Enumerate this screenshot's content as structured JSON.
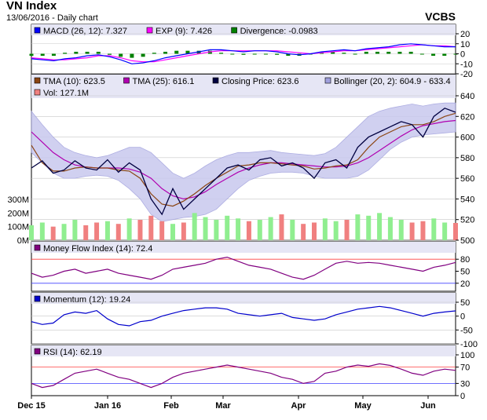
{
  "header": {
    "title": "VN Index",
    "subtitle": "13/06/2016 - Daily chart",
    "source": "VCBS"
  },
  "colors": {
    "panel_bg": "#ffffff",
    "legend_bg": "#e6e6f5",
    "price_bg": "#e8e8f5",
    "macd": "#0000ff",
    "exp": "#ff00ff",
    "divergence": "#008000",
    "tma10": "#8b4513",
    "tma25": "#b000b0",
    "closing": "#000040",
    "bollinger_fill": "#c8c8ee",
    "bollinger_line": "#a0a0dd",
    "vol_up": "#90ee90",
    "vol_down": "#f08080",
    "mfi": "#800080",
    "mfi_fill": "#ff7f7f",
    "momentum": "#0000cc",
    "rsi": "#800080",
    "rsi_high": "#ff6060",
    "rsi_low": "#6060ff",
    "level_high": "#ff4040",
    "level_low": "#4040ff"
  },
  "chart_data": [
    {
      "type": "line",
      "panel": "macd",
      "legend": [
        {
          "label": "MACD (26, 12): 7.327",
          "color": "#0000ff"
        },
        {
          "label": "EXP (9): 7.426",
          "color": "#ff00ff"
        },
        {
          "label": "Divergence: -0.0983",
          "color": "#008000"
        }
      ],
      "ylim": [
        -20,
        20
      ],
      "yticks": [
        "20",
        "10",
        "0",
        "-10",
        "-20"
      ],
      "series": [
        {
          "name": "MACD (26, 12)",
          "values": [
            -5,
            -6,
            -7,
            -5,
            -4,
            -2,
            -1,
            -3,
            -6,
            -10,
            -9,
            -7,
            -4,
            -2,
            0,
            2,
            4,
            4,
            3,
            2,
            3,
            3,
            2,
            0,
            -1,
            0,
            2,
            3,
            4,
            3,
            5,
            6,
            7,
            9,
            10,
            9,
            8,
            7,
            7
          ]
        },
        {
          "name": "EXP (9)",
          "values": [
            -4,
            -5,
            -6,
            -6,
            -5,
            -4,
            -2,
            -2,
            -4,
            -7,
            -8,
            -8,
            -6,
            -4,
            -2,
            0,
            2,
            3,
            3,
            3,
            3,
            3,
            3,
            2,
            1,
            0,
            1,
            2,
            3,
            3,
            4,
            5,
            6,
            7,
            8,
            9,
            8,
            8,
            7
          ]
        },
        {
          "name": "Divergence",
          "values": [
            -2,
            -2,
            -2,
            1,
            2,
            2,
            2,
            -1,
            -3,
            -4,
            -3,
            1,
            2,
            3,
            3,
            3,
            3,
            1,
            0,
            -1,
            0,
            0,
            -1,
            -2,
            -2,
            0,
            2,
            2,
            1,
            0,
            2,
            2,
            2,
            2,
            2,
            0,
            -2,
            -2,
            0
          ]
        }
      ]
    },
    {
      "type": "line",
      "panel": "price",
      "legend": [
        {
          "label": "TMA (10): 623.5",
          "color": "#8b4513"
        },
        {
          "label": "TMA (25): 616.1",
          "color": "#b000b0"
        },
        {
          "label": "Closing Price: 623.6",
          "color": "#000040"
        },
        {
          "label": "Bollinger (20, 2): 604.9 - 633.4",
          "color": "#a0a0dd"
        },
        {
          "label": "Vol: 127.1M",
          "color": "#f08080"
        }
      ],
      "ylim": [
        500,
        640
      ],
      "yticks": [
        "640",
        "620",
        "600",
        "580",
        "560",
        "540",
        "520",
        "500"
      ],
      "vol_ticks": [
        "300M",
        "200M",
        "100M",
        "0M"
      ],
      "x_labels": [
        "Dec 15",
        "Jan 16",
        "Feb",
        "Mar",
        "Apr",
        "May",
        "Jun"
      ],
      "series": [
        {
          "name": "Closing Price",
          "values": [
            570,
            577,
            565,
            568,
            577,
            570,
            568,
            578,
            566,
            575,
            568,
            540,
            525,
            550,
            530,
            540,
            550,
            560,
            570,
            573,
            568,
            578,
            580,
            572,
            575,
            570,
            560,
            575,
            578,
            570,
            590,
            600,
            605,
            610,
            615,
            612,
            600,
            620,
            628,
            624
          ]
        },
        {
          "name": "TMA (10)",
          "values": [
            592,
            575,
            567,
            567,
            570,
            571,
            570,
            570,
            568,
            567,
            560,
            545,
            535,
            533,
            538,
            545,
            553,
            560,
            566,
            572,
            573,
            575,
            575,
            574,
            573,
            572,
            569,
            570,
            572,
            573,
            578,
            590,
            600,
            605,
            610,
            612,
            612,
            615,
            620,
            623
          ]
        },
        {
          "name": "TMA (25)",
          "values": [
            605,
            595,
            585,
            578,
            573,
            571,
            570,
            570,
            570,
            569,
            566,
            560,
            550,
            543,
            540,
            542,
            547,
            554,
            560,
            566,
            570,
            573,
            575,
            575,
            574,
            573,
            572,
            571,
            571,
            572,
            575,
            580,
            587,
            594,
            601,
            607,
            611,
            613,
            615,
            616
          ]
        },
        {
          "name": "Bollinger upper",
          "values": [
            625,
            612,
            600,
            590,
            585,
            582,
            580,
            582,
            586,
            590,
            590,
            585,
            575,
            565,
            560,
            565,
            572,
            578,
            582,
            585,
            585,
            586,
            587,
            585,
            584,
            583,
            582,
            584,
            590,
            600,
            610,
            620,
            625,
            628,
            630,
            632,
            630,
            632,
            633,
            633
          ]
        },
        {
          "name": "Bollinger lower",
          "values": [
            585,
            575,
            565,
            560,
            560,
            562,
            563,
            562,
            558,
            550,
            540,
            525,
            518,
            520,
            522,
            523,
            525,
            530,
            540,
            550,
            558,
            562,
            565,
            566,
            566,
            565,
            562,
            560,
            560,
            560,
            562,
            568,
            578,
            588,
            595,
            600,
            602,
            603,
            604,
            605
          ]
        },
        {
          "name": "Vol",
          "values": [
            110,
            130,
            100,
            120,
            150,
            110,
            130,
            140,
            120,
            160,
            150,
            180,
            140,
            120,
            130,
            200,
            170,
            150,
            180,
            160,
            140,
            150,
            170,
            190,
            150,
            120,
            130,
            160,
            140,
            150,
            190,
            180,
            200,
            170,
            150,
            130,
            140,
            160,
            130,
            127
          ]
        }
      ]
    },
    {
      "type": "line",
      "panel": "mfi",
      "legend": [
        {
          "label": "Money Flow Index (14): 72.4",
          "color": "#800080"
        }
      ],
      "ylim": [
        0,
        100
      ],
      "yticks": [
        "80",
        "50",
        "20"
      ],
      "series": [
        {
          "name": "Money Flow Index (14)",
          "values": [
            45,
            35,
            40,
            50,
            55,
            45,
            50,
            55,
            45,
            40,
            35,
            30,
            40,
            55,
            60,
            65,
            70,
            80,
            85,
            75,
            65,
            60,
            55,
            45,
            35,
            30,
            40,
            55,
            70,
            75,
            70,
            72,
            70,
            65,
            60,
            55,
            50,
            60,
            65,
            72
          ]
        }
      ]
    },
    {
      "type": "line",
      "panel": "momentum",
      "legend": [
        {
          "label": "Momentum (12): 19.24",
          "color": "#0000cc"
        }
      ],
      "ylim": [
        -100,
        50
      ],
      "yticks": [
        "50",
        "0",
        "-50",
        "-100"
      ],
      "series": [
        {
          "name": "Momentum (12)",
          "values": [
            -20,
            -30,
            -25,
            5,
            15,
            10,
            20,
            -10,
            -30,
            -35,
            -20,
            -15,
            0,
            10,
            20,
            25,
            30,
            30,
            25,
            10,
            5,
            0,
            5,
            10,
            -5,
            -10,
            -15,
            -10,
            5,
            15,
            25,
            30,
            35,
            30,
            20,
            10,
            0,
            10,
            15,
            19
          ]
        }
      ]
    },
    {
      "type": "line",
      "panel": "rsi",
      "legend": [
        {
          "label": "RSI (14): 62.19",
          "color": "#800080"
        }
      ],
      "ylim": [
        0,
        100
      ],
      "yticks": [
        "100",
        "70",
        "30",
        "0"
      ],
      "series": [
        {
          "name": "RSI (14)",
          "values": [
            30,
            20,
            25,
            40,
            55,
            60,
            65,
            55,
            45,
            40,
            30,
            20,
            30,
            45,
            55,
            60,
            65,
            70,
            75,
            70,
            65,
            60,
            55,
            45,
            40,
            30,
            35,
            55,
            60,
            70,
            75,
            72,
            78,
            74,
            65,
            55,
            50,
            60,
            65,
            62
          ]
        }
      ]
    }
  ]
}
